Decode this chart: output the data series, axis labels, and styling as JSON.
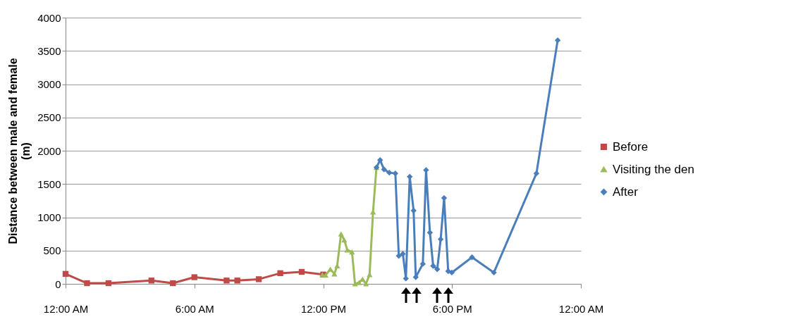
{
  "chart_data": {
    "type": "line",
    "ylabel": "Distance between male and female (m)",
    "xlim": [
      0,
      24
    ],
    "xticks": [
      {
        "value": 0,
        "label": "12:00 AM"
      },
      {
        "value": 6,
        "label": "6:00 AM"
      },
      {
        "value": 12,
        "label": "12:00 PM"
      },
      {
        "value": 18,
        "label": "6:00 PM"
      },
      {
        "value": 24,
        "label": "12:00 AM"
      }
    ],
    "ylim": [
      0,
      4000
    ],
    "yticks": [
      0,
      500,
      1000,
      1500,
      2000,
      2500,
      3000,
      3500,
      4000
    ],
    "grid": "y",
    "legend": "right",
    "series": [
      {
        "name": "Before",
        "color": "#be4b48",
        "marker": "square",
        "x": [
          0,
          1,
          2,
          4,
          5,
          6,
          7.5,
          8,
          9,
          10,
          11,
          12
        ],
        "values": [
          150,
          10,
          10,
          50,
          10,
          100,
          50,
          50,
          70,
          160,
          180,
          140
        ]
      },
      {
        "name": "Visiting the den",
        "color": "#9bbb59",
        "marker": "triangle",
        "x": [
          11.96,
          12.11,
          12.33,
          12.52,
          12.65,
          12.83,
          12.98,
          13.12,
          13.34,
          13.48,
          13.67,
          13.83,
          13.99,
          14.16,
          14.32,
          14.48
        ],
        "values": [
          140,
          130,
          220,
          150,
          270,
          750,
          660,
          510,
          480,
          0,
          20,
          70,
          0,
          140,
          1080,
          1750
        ]
      },
      {
        "name": "After",
        "color": "#4a7ebb",
        "marker": "diamond",
        "x": [
          14.48,
          14.65,
          14.83,
          15.08,
          15.36,
          15.52,
          15.71,
          15.85,
          16.03,
          16.21,
          16.31,
          16.64,
          16.79,
          16.97,
          17.12,
          17.31,
          17.47,
          17.63,
          17.82,
          17.99,
          18.93,
          19.95,
          21.93,
          22.92
        ],
        "values": [
          1750,
          1860,
          1720,
          1670,
          1660,
          420,
          450,
          80,
          1610,
          1100,
          100,
          300,
          1710,
          770,
          270,
          220,
          670,
          1290,
          190,
          170,
          400,
          170,
          1660,
          3660
        ]
      }
    ]
  }
}
